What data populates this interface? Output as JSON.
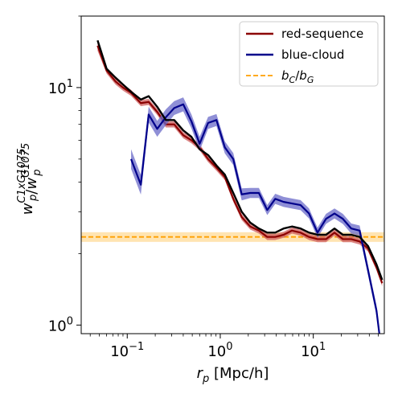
{
  "chart_data": {
    "type": "line",
    "xscale": "log",
    "yscale": "log",
    "xlim": [
      0.032,
      58
    ],
    "ylim": [
      0.92,
      20
    ],
    "xlabel": "r_p [Mpc/h]",
    "ylabel": "w_p^C1xG1075 / w_p^G1075",
    "xticks": [
      {
        "value": 0.1,
        "base": "10",
        "exp": "−1"
      },
      {
        "value": 1,
        "base": "10",
        "exp": "0"
      },
      {
        "value": 10,
        "base": "10",
        "exp": "1"
      }
    ],
    "yticks": [
      {
        "value": 1,
        "base": "10",
        "exp": "0"
      },
      {
        "value": 10,
        "base": "10",
        "exp": "1"
      }
    ],
    "grid": false,
    "legend_position": "top-right",
    "series": [
      {
        "name": "red-sequence",
        "color": "#8b0000",
        "band_color": "#cd5c5c",
        "x": [
          0.048,
          0.06,
          0.075,
          0.09,
          0.11,
          0.14,
          0.17,
          0.21,
          0.26,
          0.32,
          0.4,
          0.49,
          0.6,
          0.74,
          0.91,
          1.12,
          1.38,
          1.7,
          2.1,
          2.6,
          3.2,
          3.9,
          4.8,
          5.9,
          7.3,
          9.0,
          11.1,
          13.7,
          16.9,
          20.8,
          25.6,
          31.5,
          38.8,
          47.8,
          55
        ],
        "y": [
          15.0,
          11.8,
          10.6,
          10.0,
          9.5,
          8.6,
          8.7,
          7.9,
          7.0,
          7.0,
          6.3,
          6.0,
          5.6,
          5.0,
          4.6,
          4.2,
          3.4,
          2.85,
          2.6,
          2.5,
          2.35,
          2.35,
          2.4,
          2.5,
          2.45,
          2.35,
          2.3,
          2.3,
          2.45,
          2.3,
          2.3,
          2.25,
          2.1,
          1.75,
          1.5
        ],
        "err": [
          0.05,
          0.03,
          0.03,
          0.03,
          0.03,
          0.03,
          0.03,
          0.03,
          0.03,
          0.03,
          0.03,
          0.03,
          0.03,
          0.03,
          0.03,
          0.03,
          0.03,
          0.03,
          0.03,
          0.03,
          0.03,
          0.03,
          0.03,
          0.03,
          0.03,
          0.03,
          0.03,
          0.03,
          0.03,
          0.03,
          0.03,
          0.03,
          0.03,
          0.03,
          0.03
        ]
      },
      {
        "name": "blue-cloud",
        "color": "#00008b",
        "band_color": "#6a6ac8",
        "x": [
          0.11,
          0.14,
          0.17,
          0.21,
          0.26,
          0.32,
          0.4,
          0.49,
          0.6,
          0.74,
          0.91,
          1.12,
          1.38,
          1.7,
          2.1,
          2.6,
          3.2,
          3.9,
          4.8,
          5.9,
          7.3,
          9.0,
          11.1,
          13.7,
          16.9,
          20.8,
          25.6,
          31.5,
          38.8,
          47.8,
          52
        ],
        "y": [
          5.0,
          3.9,
          7.7,
          6.7,
          7.5,
          8.2,
          8.5,
          7.2,
          5.8,
          7.1,
          7.3,
          5.6,
          5.0,
          3.55,
          3.6,
          3.6,
          3.05,
          3.4,
          3.3,
          3.25,
          3.2,
          2.95,
          2.45,
          2.8,
          2.95,
          2.8,
          2.55,
          2.5,
          1.7,
          1.15,
          0.88
        ],
        "err": [
          0.1,
          0.1,
          0.08,
          0.08,
          0.08,
          0.07,
          0.07,
          0.07,
          0.07,
          0.06,
          0.06,
          0.06,
          0.06,
          0.06,
          0.05,
          0.05,
          0.05,
          0.05,
          0.05,
          0.05,
          0.05,
          0.05,
          0.05,
          0.05,
          0.05,
          0.05,
          0.05,
          0.05,
          0.05,
          0.05,
          0.05
        ]
      },
      {
        "name": "",
        "color": "#000000",
        "x": [
          0.048,
          0.06,
          0.075,
          0.09,
          0.11,
          0.14,
          0.17,
          0.21,
          0.26,
          0.32,
          0.4,
          0.49,
          0.6,
          0.74,
          0.91,
          1.12,
          1.38,
          1.7,
          2.1,
          2.6,
          3.2,
          3.9,
          4.8,
          5.9,
          7.3,
          9.0,
          11.1,
          13.7,
          16.9,
          20.8,
          25.6,
          31.5,
          38.8,
          47.8,
          55
        ],
        "y": [
          15.8,
          12.0,
          11.0,
          10.3,
          9.6,
          8.9,
          9.2,
          8.3,
          7.3,
          7.3,
          6.6,
          6.2,
          5.5,
          5.2,
          4.7,
          4.3,
          3.6,
          3.0,
          2.7,
          2.55,
          2.45,
          2.45,
          2.55,
          2.6,
          2.55,
          2.45,
          2.4,
          2.4,
          2.55,
          2.4,
          2.4,
          2.35,
          2.15,
          1.8,
          1.55
        ]
      }
    ],
    "reference_line": {
      "name": "b_C/b_G",
      "value": 2.35,
      "band": [
        2.24,
        2.46
      ],
      "color": "#ff9f00",
      "band_color": "#ffd27f",
      "style": "dashed"
    },
    "legend": [
      {
        "label": "red-sequence",
        "color": "#8b0000",
        "style": "solid"
      },
      {
        "label": "blue-cloud",
        "color": "#00008b",
        "style": "solid"
      },
      {
        "label": "b_C/b_G",
        "color": "#ff9f00",
        "style": "dashed"
      }
    ]
  }
}
